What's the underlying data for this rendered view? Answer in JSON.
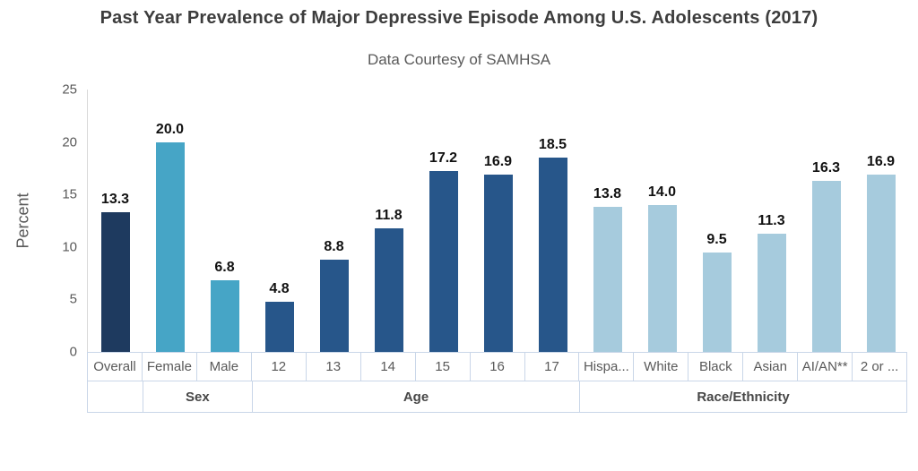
{
  "title": "Past Year Prevalence of Major Depressive Episode Among U.S. Adolescents (2017)",
  "subtitle": "Data Courtesy of SAMHSA",
  "chart_data": {
    "type": "bar",
    "title": "Past Year Prevalence of Major Depressive Episode Among U.S. Adolescents (2017)",
    "subtitle": "Data Courtesy of SAMHSA",
    "ylabel": "Percent",
    "xlabel": "",
    "ylim": [
      0,
      25
    ],
    "yticks": [
      0,
      5,
      10,
      15,
      20,
      25
    ],
    "grid": false,
    "legend": "none",
    "value_labels_shown": true,
    "groups": [
      {
        "label": "",
        "bar_color": "#1e3a5f",
        "bars": [
          {
            "label": "Overall",
            "value": 13.3
          }
        ]
      },
      {
        "label": "Sex",
        "bar_color": "#46a5c6",
        "bars": [
          {
            "label": "Female",
            "value": 20.0
          },
          {
            "label": "Male",
            "value": 6.8
          }
        ]
      },
      {
        "label": "Age",
        "bar_color": "#27568a",
        "bars": [
          {
            "label": "12",
            "value": 4.8
          },
          {
            "label": "13",
            "value": 8.8
          },
          {
            "label": "14",
            "value": 11.8
          },
          {
            "label": "15",
            "value": 17.2
          },
          {
            "label": "16",
            "value": 16.9
          },
          {
            "label": "17",
            "value": 18.5
          }
        ]
      },
      {
        "label": "Race/Ethnicity",
        "bar_color": "#a6cbdd",
        "bars": [
          {
            "label": "Hispa...",
            "value": 13.8
          },
          {
            "label": "White",
            "value": 14.0
          },
          {
            "label": "Black",
            "value": 9.5
          },
          {
            "label": "Asian",
            "value": 11.3
          },
          {
            "label": "AI/AN**",
            "value": 16.3
          },
          {
            "label": "2 or ...",
            "value": 16.9
          }
        ]
      }
    ]
  },
  "colors": {
    "background": "#ffffff",
    "title_text": "#3d3d3d",
    "subtitle_text": "#595959",
    "axis_text": "#595959",
    "group_label_text": "#474747",
    "value_label_text": "#111111",
    "axis_line": "#d9d9d9",
    "table_border": "#c9d6e8"
  }
}
